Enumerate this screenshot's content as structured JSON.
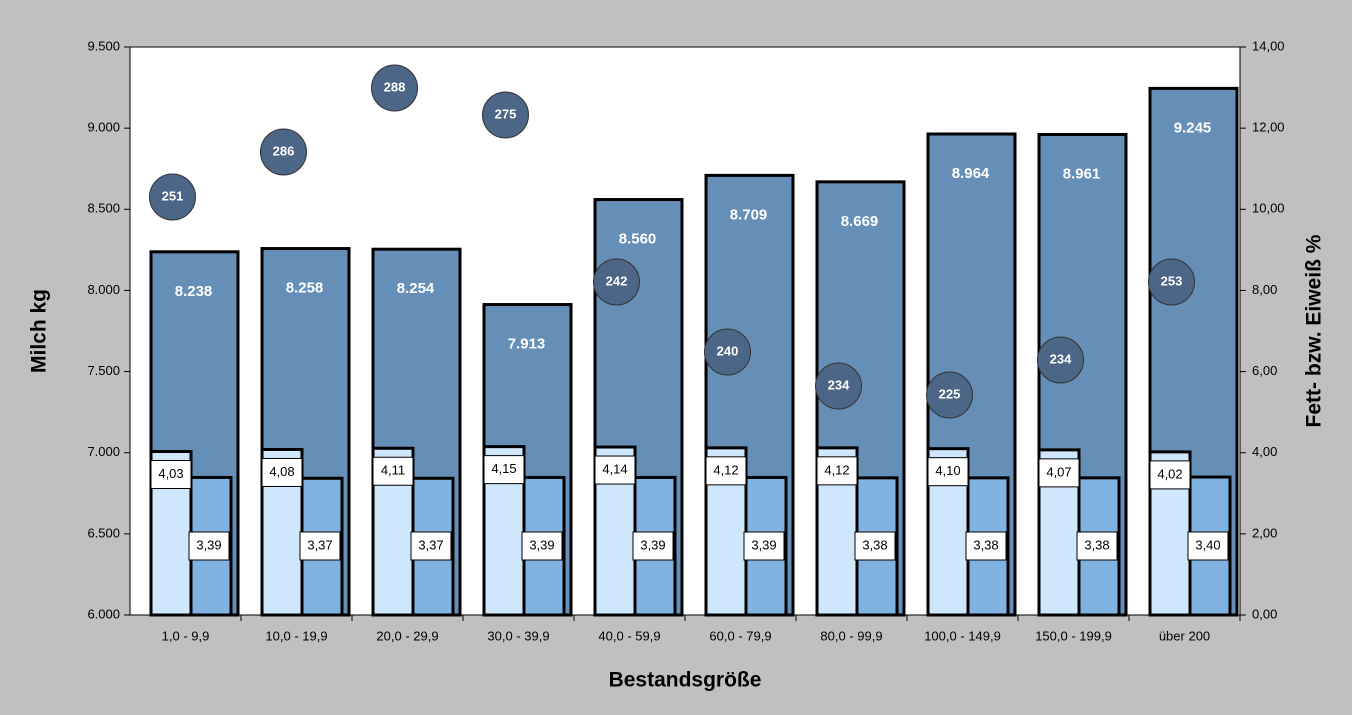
{
  "chart_data": {
    "type": "bar",
    "x_label": "Bestandsgröße",
    "y_label": "Milch kg",
    "y2_label": "Fett- bzw. Eiweiß %",
    "categories": [
      "1,0 -   9,9",
      "10,0 - 19,9",
      "20,0 - 29,9",
      "30,0 - 39,9",
      "40,0 - 59,9",
      "60,0 - 79,9",
      "80,0 - 99,9",
      "100,0 - 149,9",
      "150,0 - 199,9",
      "über 200"
    ],
    "ylim": [
      6000,
      9500
    ],
    "yticks": [
      {
        "value": 6000,
        "label": "6.000"
      },
      {
        "value": 6500,
        "label": "6.500"
      },
      {
        "value": 7000,
        "label": "7.000"
      },
      {
        "value": 7500,
        "label": "7.500"
      },
      {
        "value": 8000,
        "label": "8.000"
      },
      {
        "value": 8500,
        "label": "8.500"
      },
      {
        "value": 9000,
        "label": "9.000"
      },
      {
        "value": 9500,
        "label": "9.500"
      }
    ],
    "y2lim": [
      0,
      14
    ],
    "y2ticks": [
      {
        "value": 0,
        "label": "0,00"
      },
      {
        "value": 2,
        "label": "2,00"
      },
      {
        "value": 4,
        "label": "4,00"
      },
      {
        "value": 6,
        "label": "6,00"
      },
      {
        "value": 8,
        "label": "8,00"
      },
      {
        "value": 10,
        "label": "10,00"
      },
      {
        "value": 12,
        "label": "12,00"
      },
      {
        "value": 14,
        "label": "14,00"
      }
    ],
    "series": [
      {
        "color": "#668fb8",
        "values": [
          8238,
          8258,
          8254,
          7913,
          8560,
          8709,
          8669,
          8964,
          8961,
          9245
        ],
        "value_labels": [
          "8.238",
          "8.258",
          "8.254",
          "7.913",
          "8.560",
          "8.709",
          "8.669",
          "8.964",
          "8.961",
          "9.245"
        ]
      },
      {
        "color": "#cfe7fc",
        "axis": "y2",
        "values": [
          4.03,
          4.08,
          4.11,
          4.15,
          4.14,
          4.12,
          4.12,
          4.1,
          4.07,
          4.02
        ],
        "value_labels": [
          "4,03",
          "4,08",
          "4,11",
          "4,15",
          "4,14",
          "4,12",
          "4,12",
          "4,10",
          "4,07",
          "4,02"
        ]
      },
      {
        "color": "#80b3e2",
        "axis": "y2",
        "values": [
          3.39,
          3.37,
          3.37,
          3.39,
          3.39,
          3.39,
          3.38,
          3.38,
          3.38,
          3.4
        ],
        "value_labels": [
          "3,39",
          "3,37",
          "3,37",
          "3,39",
          "3,39",
          "3,39",
          "3,38",
          "3,38",
          "3,38",
          "3,40"
        ]
      },
      {
        "color": "#4b6686",
        "values": [
          251,
          286,
          288,
          275,
          242,
          240,
          234,
          225,
          234,
          253
        ]
      }
    ]
  }
}
